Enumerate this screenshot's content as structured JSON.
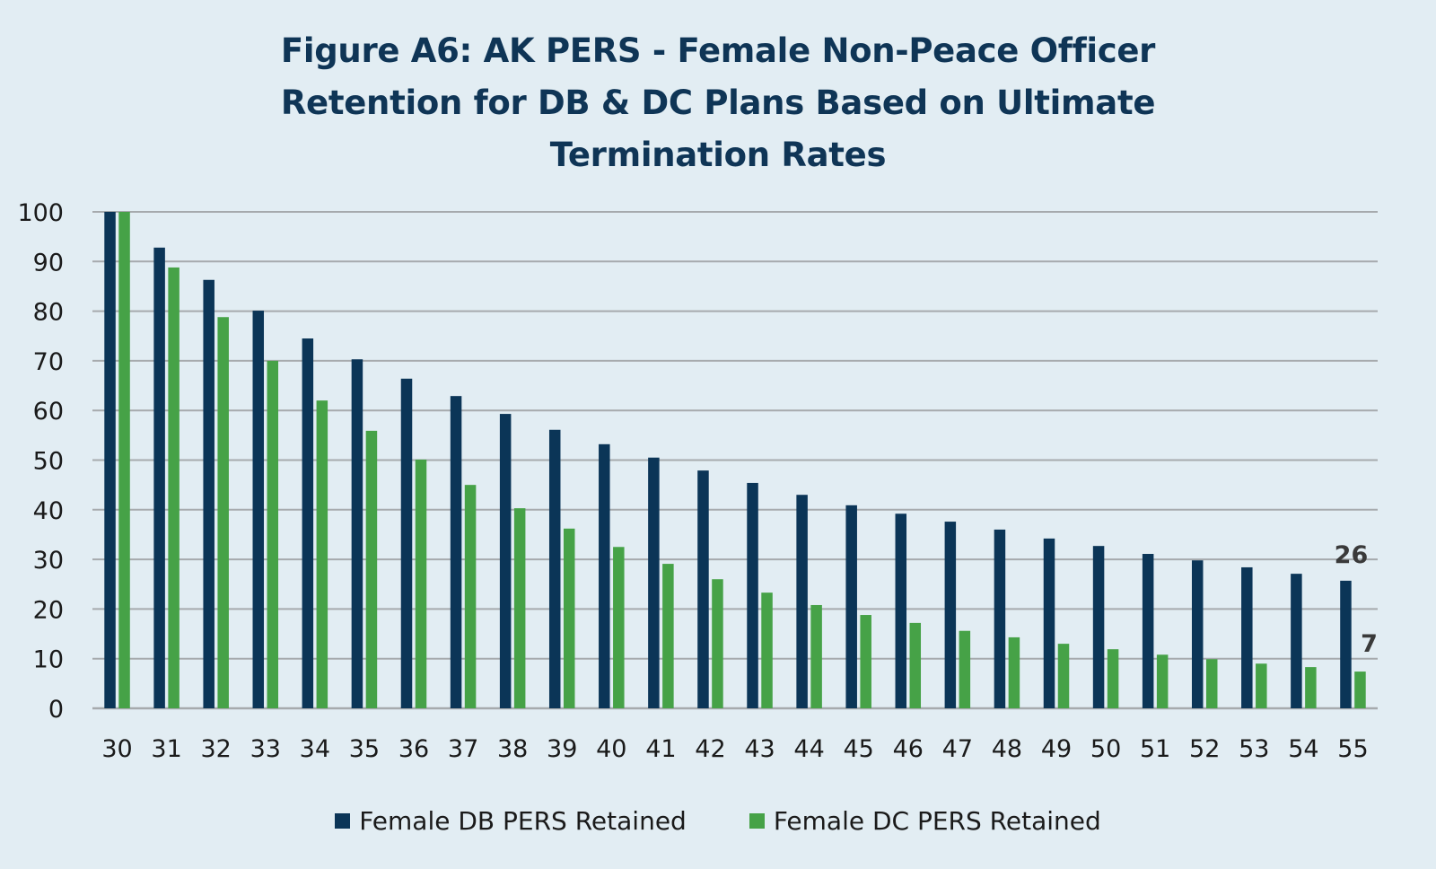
{
  "title": {
    "prefix": "Figure A6:",
    "line1_rest": "AK PERS - Female Non-Peace Officer",
    "line2": "Retention for DB & DC Plans Based on Ultimate",
    "line3": "Termination Rates"
  },
  "colors": {
    "background": "#e2edf3",
    "db": "#0b3557",
    "dc": "#46a247",
    "grid": "#a6aaad",
    "title": "#0f3556",
    "annotation": "#3a3a3a"
  },
  "chart_data": {
    "type": "bar",
    "title": "Figure A6: AK PERS - Female Non-Peace Officer Retention for DB & DC Plans Based on Ultimate Termination Rates",
    "xlabel": "",
    "ylabel": "",
    "ylim": [
      0,
      100
    ],
    "yticks": [
      "0",
      "10",
      "20",
      "30",
      "40",
      "50",
      "60",
      "70",
      "80",
      "90",
      "100"
    ],
    "grid": true,
    "legend_position": "bottom",
    "categories": [
      "30",
      "31",
      "32",
      "33",
      "34",
      "35",
      "36",
      "37",
      "38",
      "39",
      "40",
      "41",
      "42",
      "43",
      "44",
      "45",
      "46",
      "47",
      "48",
      "49",
      "50",
      "51",
      "52",
      "53",
      "54",
      "55"
    ],
    "series": [
      {
        "name": "Female DB PERS Retained",
        "color": "#0b3557",
        "values": [
          100,
          92.8,
          86.3,
          80.1,
          74.5,
          70.3,
          66.4,
          62.9,
          59.3,
          56.1,
          53.2,
          50.5,
          47.9,
          45.4,
          43.0,
          40.9,
          39.2,
          37.6,
          36.0,
          34.2,
          32.7,
          31.1,
          29.8,
          28.4,
          27.1,
          25.7
        ]
      },
      {
        "name": "Female DC PERS Retained",
        "color": "#46a247",
        "values": [
          100,
          88.8,
          78.8,
          70.0,
          62.0,
          55.9,
          50.1,
          45.0,
          40.3,
          36.2,
          32.5,
          29.1,
          26.0,
          23.3,
          20.8,
          18.8,
          17.2,
          15.6,
          14.3,
          13.0,
          11.9,
          10.8,
          9.9,
          9.0,
          8.3,
          7.4
        ]
      }
    ],
    "annotations": [
      {
        "text": "26",
        "series": "Female DB PERS Retained",
        "category": "55"
      },
      {
        "text": "7",
        "series": "Female DC PERS Retained",
        "category": "55"
      }
    ]
  }
}
